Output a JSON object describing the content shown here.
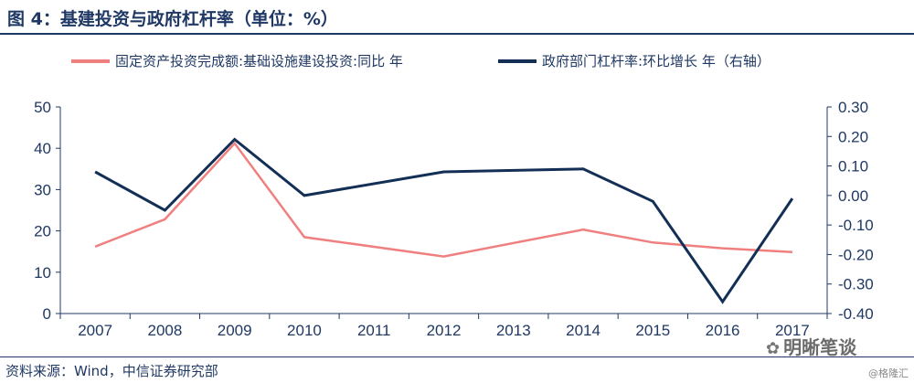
{
  "header": {
    "title": "图 4：基建投资与政府杠杆率（单位：%）"
  },
  "footer": {
    "source": "资料来源：Wind，中信证券研究部",
    "watermark": "明晰笔谈",
    "credit": "@格隆汇"
  },
  "colors": {
    "series1": "#f08080",
    "series2": "#132f55",
    "text": "#1f3864"
  },
  "chart_data": {
    "type": "line",
    "x": [
      "2007",
      "2008",
      "2009",
      "2010",
      "2011",
      "2012",
      "2013",
      "2014",
      "2015",
      "2016",
      "2017"
    ],
    "y_left": {
      "range": [
        0,
        50
      ],
      "ticks": [
        "0",
        "10",
        "20",
        "30",
        "40",
        "50"
      ]
    },
    "y_right": {
      "range": [
        -0.4,
        0.3
      ],
      "ticks": [
        "-0.40",
        "-0.30",
        "-0.20",
        "-0.10",
        "0.00",
        "0.10",
        "0.20",
        "0.30"
      ]
    },
    "grid": false,
    "legend_position": "top",
    "series": [
      {
        "name": "固定资产投资完成额:基础设施建设投资:同比 年",
        "axis": "left",
        "x": [
          "2007",
          "2008",
          "2009",
          "2010",
          "2012",
          "2014",
          "2015",
          "2016",
          "2017"
        ],
        "values": [
          16.2,
          22.8,
          41.2,
          18.5,
          13.8,
          20.3,
          17.2,
          15.8,
          14.9
        ]
      },
      {
        "name": "政府部门杠杆率:环比增长 年（右轴）",
        "axis": "right",
        "x": [
          "2007",
          "2008",
          "2009",
          "2010",
          "2012",
          "2014",
          "2015",
          "2016",
          "2017"
        ],
        "values": [
          0.08,
          -0.05,
          0.19,
          0.0,
          0.08,
          0.09,
          -0.02,
          -0.36,
          -0.01
        ]
      }
    ]
  }
}
